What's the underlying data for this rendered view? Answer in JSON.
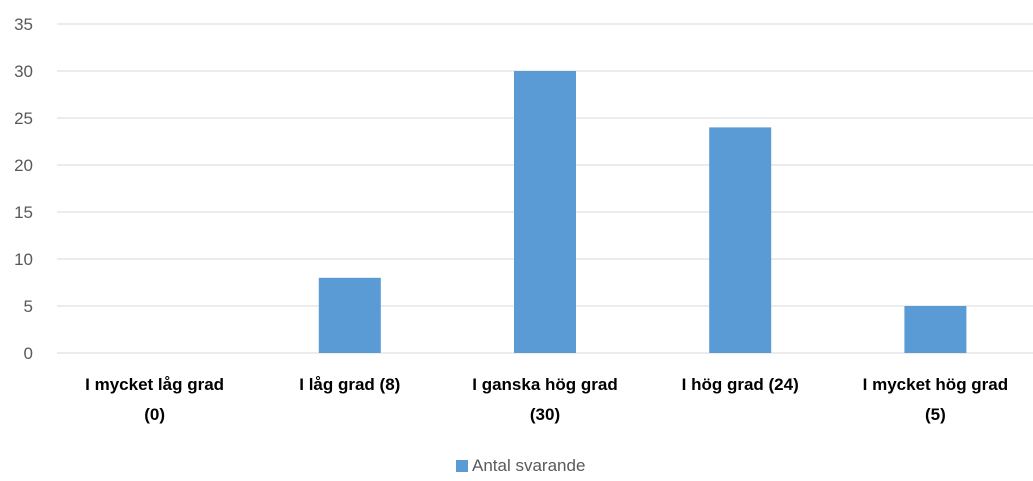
{
  "chart_data": {
    "type": "bar",
    "categories": [
      [
        "I mycket låg grad",
        "(0)"
      ],
      [
        "I låg grad (8)"
      ],
      [
        "I ganska hög grad",
        "(30)"
      ],
      [
        "I hög grad (24)"
      ],
      [
        "I mycket hög grad",
        "(5)"
      ]
    ],
    "series": [
      {
        "name": "Antal svarande",
        "values": [
          0,
          8,
          30,
          24,
          5
        ],
        "color": "#5b9bd5"
      }
    ],
    "ylim": [
      0,
      35
    ],
    "yticks": [
      0,
      5,
      10,
      15,
      20,
      25,
      30,
      35
    ],
    "grid": true,
    "legend": "bottom-center",
    "title": "",
    "xlabel": "",
    "ylabel": ""
  }
}
